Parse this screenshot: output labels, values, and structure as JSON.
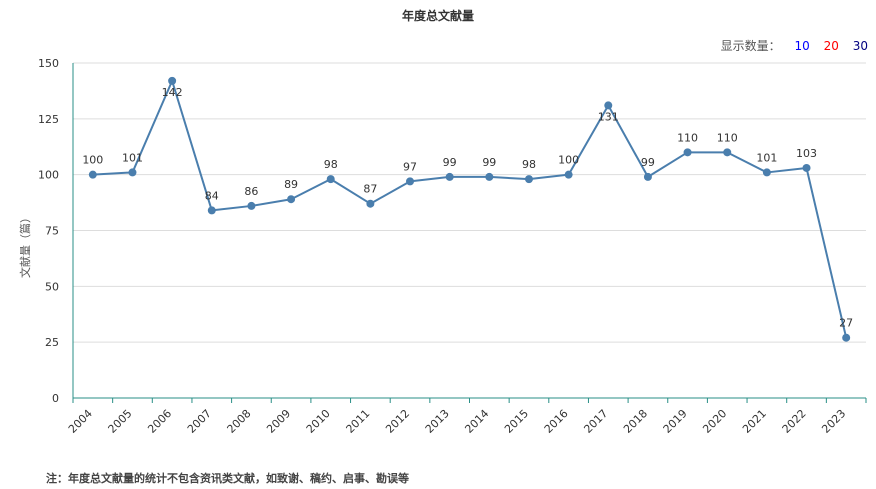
{
  "header": {
    "title": "年度总文献量"
  },
  "controls": {
    "label": "显示数量：",
    "options": [
      "10",
      "20",
      "30"
    ],
    "colors": [
      "#0000ff",
      "#ff0000",
      "#000080"
    ]
  },
  "footnote": "注：年度总文献量的统计不包含资讯类文献，如致谢、稿约、启事、勘误等",
  "chart_data": {
    "type": "line",
    "title": "年度总文献量",
    "xlabel": "",
    "ylabel": "文献量（篇）",
    "ylim": [
      0,
      150
    ],
    "yticks": [
      "0",
      "25",
      "50",
      "75",
      "100",
      "125",
      "150"
    ],
    "categories": [
      "2004",
      "2005",
      "2006",
      "2007",
      "2008",
      "2009",
      "2010",
      "2011",
      "2012",
      "2013",
      "2014",
      "2015",
      "2016",
      "2017",
      "2018",
      "2019",
      "2020",
      "2021",
      "2022",
      "2023"
    ],
    "series": [
      {
        "values": [
          100,
          101,
          142,
          84,
          86,
          89,
          98,
          87,
          97,
          99,
          99,
          98,
          100,
          131,
          99,
          110,
          110,
          101,
          103,
          27
        ],
        "color": "#4a7ead"
      }
    ],
    "grid": true,
    "legend": "none",
    "axis_color": "#2a8f87",
    "grid_color": "#dddddd"
  }
}
